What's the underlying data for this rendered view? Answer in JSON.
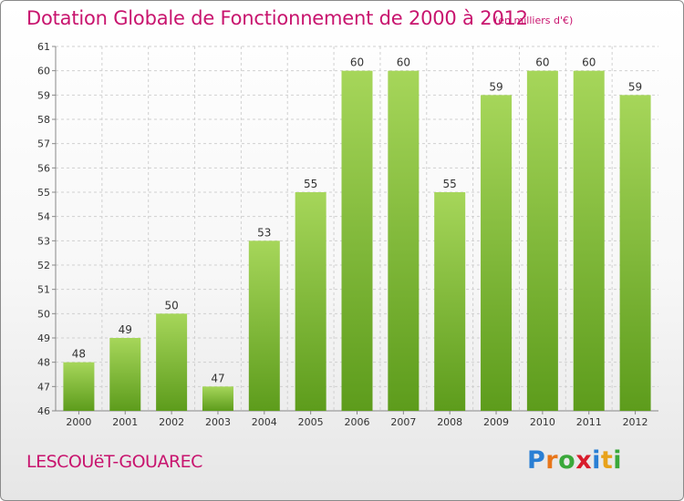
{
  "title": "Dotation Globale de Fonctionnement de 2000 à 2012",
  "subtitle": "(en milliers d'€)",
  "commune": "LESCOUëT-GOUAREC",
  "logo": {
    "text": "Proxiti",
    "letters": [
      "P",
      "r",
      "o",
      "x",
      "i",
      "t",
      "i"
    ],
    "colors": [
      "#2a7fd4",
      "#e8761a",
      "#3aa83a",
      "#d81c2c",
      "#2a7fd4",
      "#e8a21a",
      "#3aa83a"
    ]
  },
  "colors": {
    "accent": "#c8146e",
    "bar_light": "#a6d65a",
    "bar_dark": "#5d9c1c",
    "text": "#333333",
    "grid": "#d0d0d0"
  },
  "chart_data": {
    "type": "bar",
    "categories": [
      "2000",
      "2001",
      "2002",
      "2003",
      "2004",
      "2005",
      "2006",
      "2007",
      "2008",
      "2009",
      "2010",
      "2011",
      "2012"
    ],
    "values": [
      48,
      49,
      50,
      47,
      53,
      55,
      60,
      60,
      55,
      59,
      60,
      60,
      59
    ],
    "ylim": [
      46,
      61
    ],
    "yticks": [
      46,
      47,
      48,
      49,
      50,
      51,
      52,
      53,
      54,
      55,
      56,
      57,
      58,
      59,
      60,
      61
    ],
    "grid": true,
    "legend": "none"
  }
}
